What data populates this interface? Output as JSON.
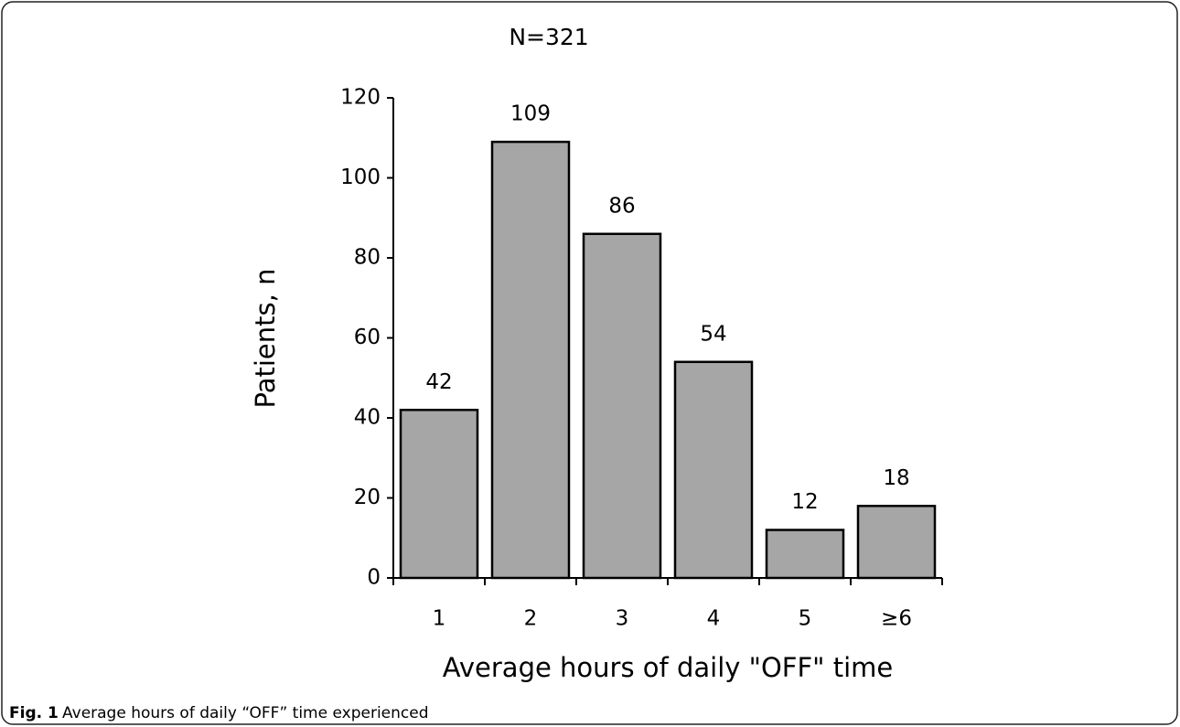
{
  "chart_data": {
    "type": "bar",
    "title": "N=321",
    "categories": [
      "1",
      "2",
      "3",
      "4",
      "5",
      "≥6"
    ],
    "values": [
      42,
      109,
      86,
      54,
      12,
      18
    ],
    "color": "#a6a6a6",
    "xlabel": "Average hours of daily \"OFF\" time",
    "ylabel": "Patients, n",
    "ylim": [
      0,
      120
    ],
    "yticks": [
      0,
      20,
      40,
      60,
      80,
      100,
      120
    ],
    "grid": false
  },
  "caption": {
    "label": "Fig. 1",
    "text": "Average hours of daily “OFF” time experienced"
  }
}
